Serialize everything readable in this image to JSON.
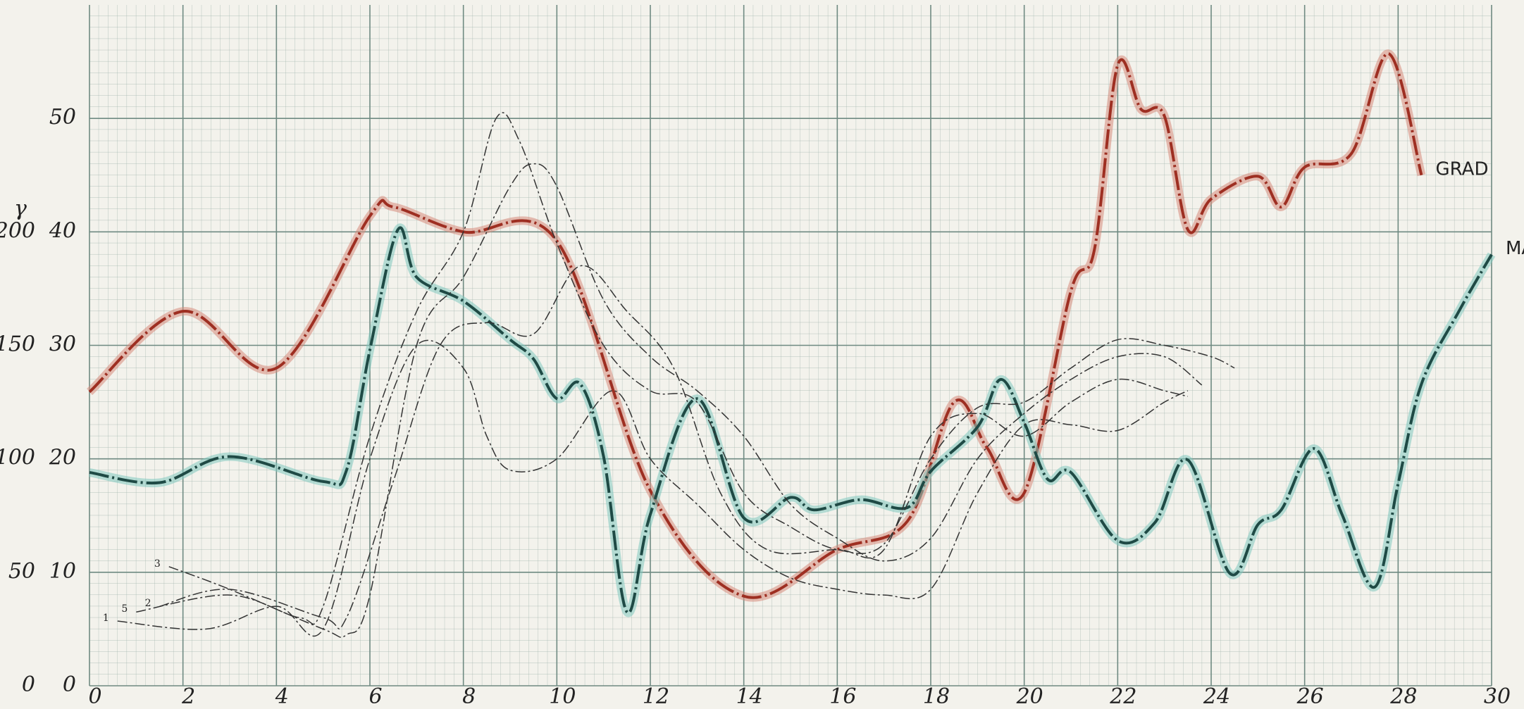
{
  "chart_data": {
    "type": "line",
    "xlim": [
      0,
      30
    ],
    "xticks": [
      0,
      2,
      4,
      6,
      8,
      10,
      12,
      14,
      16,
      18,
      20,
      22,
      24,
      26,
      28,
      30
    ],
    "ylim": [
      0,
      60
    ],
    "yticks": [
      0,
      10,
      20,
      30,
      40,
      50
    ],
    "y2lim": [
      0,
      300
    ],
    "y2ticks": [
      0,
      50,
      100,
      150,
      200
    ],
    "y2label": "γ",
    "grid": true,
    "series": [
      {
        "name": "GRAD",
        "color": "#9e2f22",
        "width": 4,
        "x": [
          0,
          2,
          4,
          6,
          6.5,
          8,
          10,
          12,
          14,
          16,
          17.5,
          18.5,
          19.2,
          20,
          21,
          21.5,
          22,
          22.5,
          23,
          23.5,
          24,
          25,
          25.5,
          26,
          27,
          27.8,
          28.5
        ],
        "values": [
          25.9,
          33,
          28,
          41.4,
          42.2,
          40,
          39.2,
          17.2,
          7.9,
          12,
          14.5,
          25,
          21,
          17,
          34.8,
          38.4,
          54.7,
          50.8,
          50.2,
          40.2,
          42.9,
          44.9,
          42.2,
          45.7,
          46.9,
          55.7,
          45
        ]
      },
      {
        "name": "MAG",
        "color": "#1f4a45",
        "width": 4,
        "x": [
          0,
          1.5,
          3,
          5,
          5.5,
          6,
          6.6,
          7,
          8,
          9,
          9.5,
          10,
          10.5,
          11,
          11.5,
          12,
          13,
          14,
          15,
          15.5,
          16.5,
          17.5,
          18,
          19,
          19.5,
          20,
          20.5,
          21,
          22,
          22.8,
          23.5,
          24.4,
          25,
          25.5,
          26.2,
          26.8,
          27.5,
          28,
          28.5,
          29.3,
          30
        ],
        "values": [
          18.8,
          17.9,
          20.2,
          18,
          19,
          29.6,
          40.2,
          36,
          33.9,
          30.5,
          28.8,
          25.3,
          26.6,
          20.2,
          6.5,
          15.1,
          25.3,
          14.8,
          16.6,
          15.5,
          16.4,
          15.7,
          18.9,
          22.8,
          27,
          23.2,
          18.2,
          18.8,
          12.8,
          14.4,
          19.9,
          9.9,
          14.2,
          15.5,
          20.9,
          15.1,
          8.7,
          17.8,
          26.6,
          33,
          38
        ]
      },
      {
        "name": "1",
        "color": "#333333",
        "width": 1.5,
        "x": [
          0.6,
          2.5,
          4,
          5,
          6,
          7,
          8,
          8.5,
          9,
          10,
          11.2,
          12,
          13,
          14,
          15,
          16,
          17,
          18,
          19,
          20,
          21,
          22,
          23,
          23.5
        ],
        "values": [
          5.7,
          5,
          7,
          5,
          20,
          30,
          28,
          22,
          19,
          20,
          26,
          20,
          16,
          12,
          9.5,
          8.5,
          8,
          8.5,
          17,
          23,
          23,
          22.5,
          25,
          26
        ]
      },
      {
        "name": "2",
        "color": "#333333",
        "width": 1.5,
        "x": [
          1.5,
          3,
          5,
          5.5,
          6.5,
          7.5,
          8.5,
          9.5,
          10.5,
          11.5,
          12.5,
          13.5,
          14.5,
          16,
          17,
          18,
          19,
          20,
          21,
          22,
          23,
          23.5
        ],
        "values": [
          7,
          8.5,
          6,
          6,
          18,
          30,
          32,
          31,
          37,
          33,
          28,
          17,
          12,
          12,
          12,
          22,
          24,
          22,
          25,
          27,
          26,
          25.5
        ]
      },
      {
        "name": "3",
        "color": "#333333",
        "width": 1.5,
        "x": [
          1.7,
          3,
          5,
          5.5,
          6,
          7,
          8,
          9,
          9.5,
          10,
          11,
          12,
          13,
          14,
          15,
          16,
          17,
          18,
          19,
          20,
          21,
          22,
          23,
          23.8
        ],
        "values": [
          10.5,
          8.5,
          5,
          4.5,
          8,
          30,
          36,
          44,
          46,
          44,
          34,
          29,
          26,
          22,
          16,
          13,
          11,
          13,
          20,
          24,
          27,
          29,
          29,
          26.5
        ]
      },
      {
        "name": "5",
        "color": "#333333",
        "width": 1.5,
        "x": [
          1,
          3,
          4.5,
          5,
          6,
          7,
          8,
          8.7,
          9.2,
          10,
          11,
          12,
          13,
          14,
          15,
          16,
          17,
          18,
          19,
          20,
          21,
          22,
          23,
          24,
          24.5
        ],
        "values": [
          6.5,
          8,
          6,
          7,
          22,
          33,
          40,
          50,
          48,
          39,
          30,
          26,
          25,
          17,
          14,
          12,
          12.5,
          20,
          24.5,
          25,
          28,
          30.5,
          30,
          29,
          28
        ]
      }
    ]
  }
}
